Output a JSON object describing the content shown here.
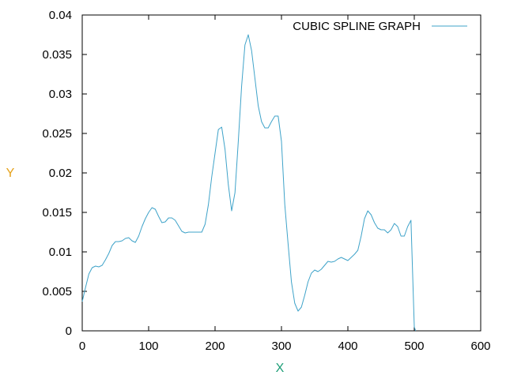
{
  "chart_data": {
    "type": "line",
    "title": "",
    "xlabel": "X",
    "ylabel": "Y",
    "xlim": [
      0,
      600
    ],
    "ylim": [
      0,
      0.04
    ],
    "x_ticks": [
      0,
      100,
      200,
      300,
      400,
      500,
      600
    ],
    "x_tick_labels": [
      "0",
      "100",
      "200",
      "300",
      "400",
      "500",
      "600"
    ],
    "y_ticks": [
      0,
      0.005,
      0.01,
      0.015,
      0.02,
      0.025,
      0.03,
      0.035,
      0.04
    ],
    "y_tick_labels": [
      "0",
      "0.005",
      "0.01",
      "0.015",
      "0.02",
      "0.025",
      "0.03",
      "0.035",
      "0.04"
    ],
    "grid": false,
    "legend_position": "top-right",
    "series": [
      {
        "name": "CUBIC SPLINE GRAPH",
        "color": "#3fa3c9",
        "x": [
          0,
          5,
          10,
          15,
          20,
          25,
          30,
          35,
          40,
          45,
          50,
          55,
          60,
          65,
          70,
          75,
          80,
          85,
          90,
          95,
          100,
          105,
          110,
          115,
          120,
          125,
          130,
          135,
          140,
          145,
          150,
          155,
          160,
          165,
          170,
          175,
          180,
          185,
          190,
          195,
          200,
          205,
          210,
          215,
          220,
          225,
          230,
          235,
          240,
          245,
          250,
          255,
          260,
          265,
          270,
          275,
          280,
          285,
          290,
          295,
          300,
          305,
          310,
          315,
          320,
          325,
          330,
          335,
          340,
          345,
          350,
          355,
          360,
          365,
          370,
          375,
          380,
          385,
          390,
          395,
          400,
          405,
          410,
          415,
          420,
          425,
          430,
          435,
          440,
          445,
          450,
          455,
          460,
          465,
          470,
          475,
          480,
          485,
          490,
          495,
          500,
          502
        ],
        "y": [
          0.0037,
          0.0055,
          0.0072,
          0.008,
          0.0082,
          0.0081,
          0.0083,
          0.009,
          0.0098,
          0.0108,
          0.0113,
          0.0113,
          0.0114,
          0.0117,
          0.0118,
          0.0114,
          0.0112,
          0.012,
          0.0132,
          0.0142,
          0.015,
          0.0156,
          0.0154,
          0.0145,
          0.0137,
          0.0138,
          0.0143,
          0.0143,
          0.014,
          0.0133,
          0.0126,
          0.0124,
          0.0125,
          0.0125,
          0.0125,
          0.0125,
          0.0125,
          0.0135,
          0.016,
          0.0195,
          0.0225,
          0.0255,
          0.0258,
          0.023,
          0.0185,
          0.0152,
          0.0175,
          0.024,
          0.031,
          0.0362,
          0.0375,
          0.0355,
          0.032,
          0.0285,
          0.0265,
          0.0257,
          0.0257,
          0.0265,
          0.0272,
          0.0272,
          0.024,
          0.016,
          0.011,
          0.0062,
          0.0035,
          0.0025,
          0.003,
          0.0045,
          0.0062,
          0.0073,
          0.0077,
          0.0075,
          0.0078,
          0.0083,
          0.0088,
          0.0087,
          0.0088,
          0.0091,
          0.0093,
          0.0091,
          0.0089,
          0.0093,
          0.0097,
          0.0102,
          0.012,
          0.0142,
          0.0152,
          0.0147,
          0.0137,
          0.013,
          0.0128,
          0.0128,
          0.0124,
          0.0128,
          0.0136,
          0.0132,
          0.012,
          0.012,
          0.0132,
          0.014,
          0.0005,
          0
        ]
      }
    ]
  }
}
